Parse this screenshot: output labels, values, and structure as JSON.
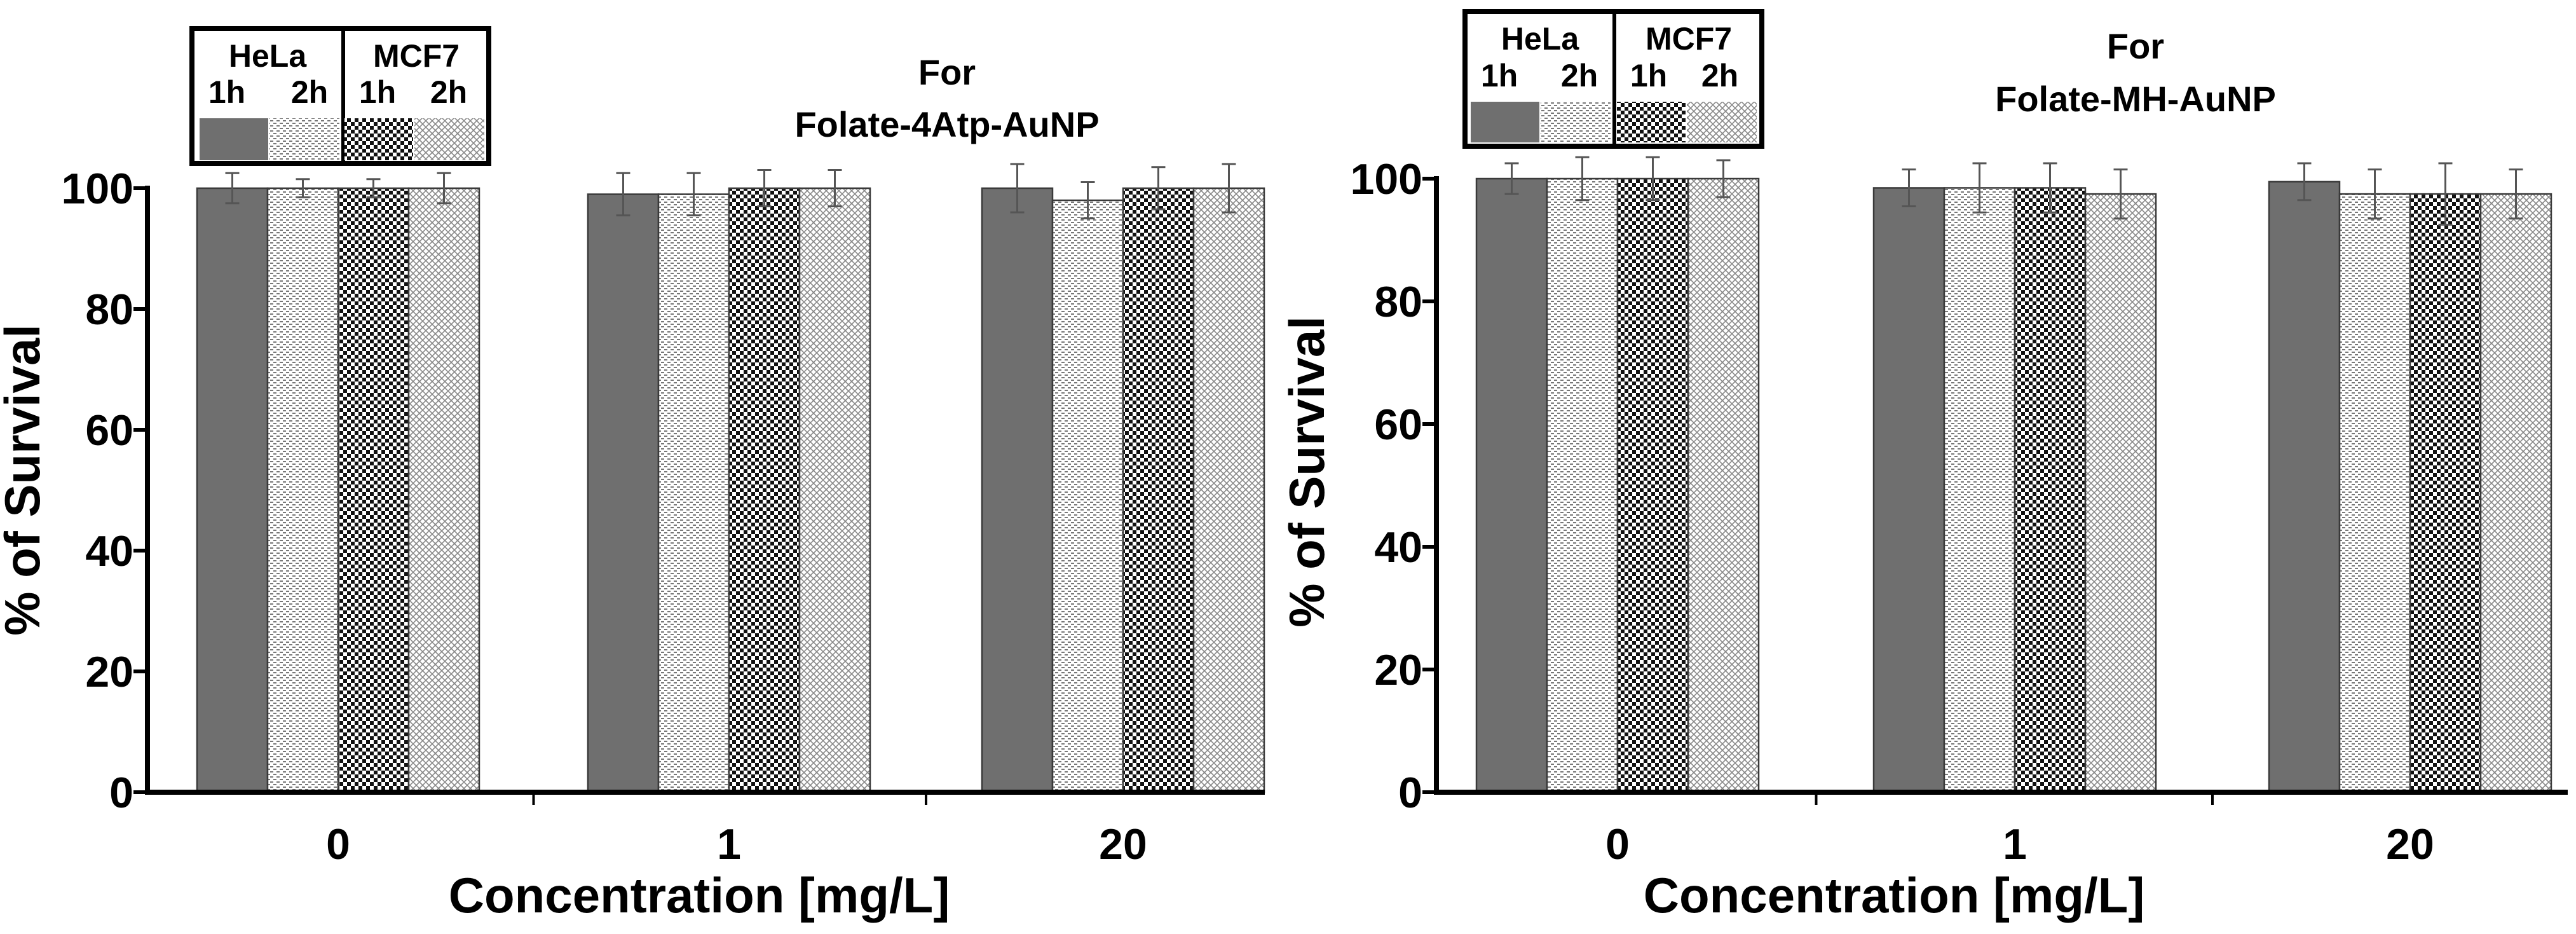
{
  "figure": {
    "colors": {
      "hela_1h": "#6f6f6f",
      "hela_2h": "#b9b9b9",
      "mcf7_1h": "#1a1a1a",
      "mcf7_2h": "#c6c6c6",
      "axis": "#000000",
      "error_bar": "#555555"
    }
  },
  "chart_data": [
    {
      "type": "bar",
      "title_line1": "For",
      "title_line2": "Folate-4Atp-AuNP",
      "xlabel": "Concentration [mg/L]",
      "ylabel": "% of Survival",
      "ylim": [
        0,
        100
      ],
      "yticks": [
        "0",
        "20",
        "40",
        "60",
        "80",
        "100"
      ],
      "categories": [
        "0",
        "1",
        "20"
      ],
      "legend": {
        "groups": [
          "HeLa",
          "MCF7"
        ],
        "sublabels": [
          "1h",
          "2h",
          "1h",
          "2h"
        ]
      },
      "series": [
        {
          "name": "HeLa 1h",
          "values": [
            100,
            99,
            100
          ],
          "errors": [
            2.5,
            3.5,
            4.0
          ]
        },
        {
          "name": "HeLa 2h",
          "values": [
            100,
            99,
            98
          ],
          "errors": [
            1.5,
            3.5,
            3.0
          ]
        },
        {
          "name": "MCF7 1h",
          "values": [
            100,
            100,
            100
          ],
          "errors": [
            1.5,
            3.0,
            3.5
          ]
        },
        {
          "name": "MCF7 2h",
          "values": [
            100,
            100,
            100
          ],
          "errors": [
            2.5,
            3.0,
            4.0
          ]
        }
      ]
    },
    {
      "type": "bar",
      "title_line1": "For",
      "title_line2": "Folate-MH-AuNP",
      "xlabel": "Concentration [mg/L]",
      "ylabel": "% of Survival",
      "ylim": [
        0,
        100
      ],
      "yticks": [
        "0",
        "20",
        "40",
        "60",
        "80",
        "100"
      ],
      "categories": [
        "0",
        "1",
        "20"
      ],
      "legend": {
        "groups": [
          "HeLa",
          "MCF7"
        ],
        "sublabels": [
          "1h",
          "2h",
          "1h",
          "2h"
        ]
      },
      "series": [
        {
          "name": "HeLa 1h",
          "values": [
            100,
            98.5,
            99.5
          ],
          "errors": [
            2.5,
            3.0,
            3.0
          ]
        },
        {
          "name": "HeLa 2h",
          "values": [
            100,
            98.5,
            97.5
          ],
          "errors": [
            3.5,
            4.0,
            4.0
          ]
        },
        {
          "name": "MCF7 1h",
          "values": [
            100,
            98.5,
            97.5
          ],
          "errors": [
            3.5,
            4.0,
            5.0
          ]
        },
        {
          "name": "MCF7 2h",
          "values": [
            100,
            97.5,
            97.5
          ],
          "errors": [
            3.0,
            4.0,
            4.0
          ]
        }
      ]
    }
  ]
}
